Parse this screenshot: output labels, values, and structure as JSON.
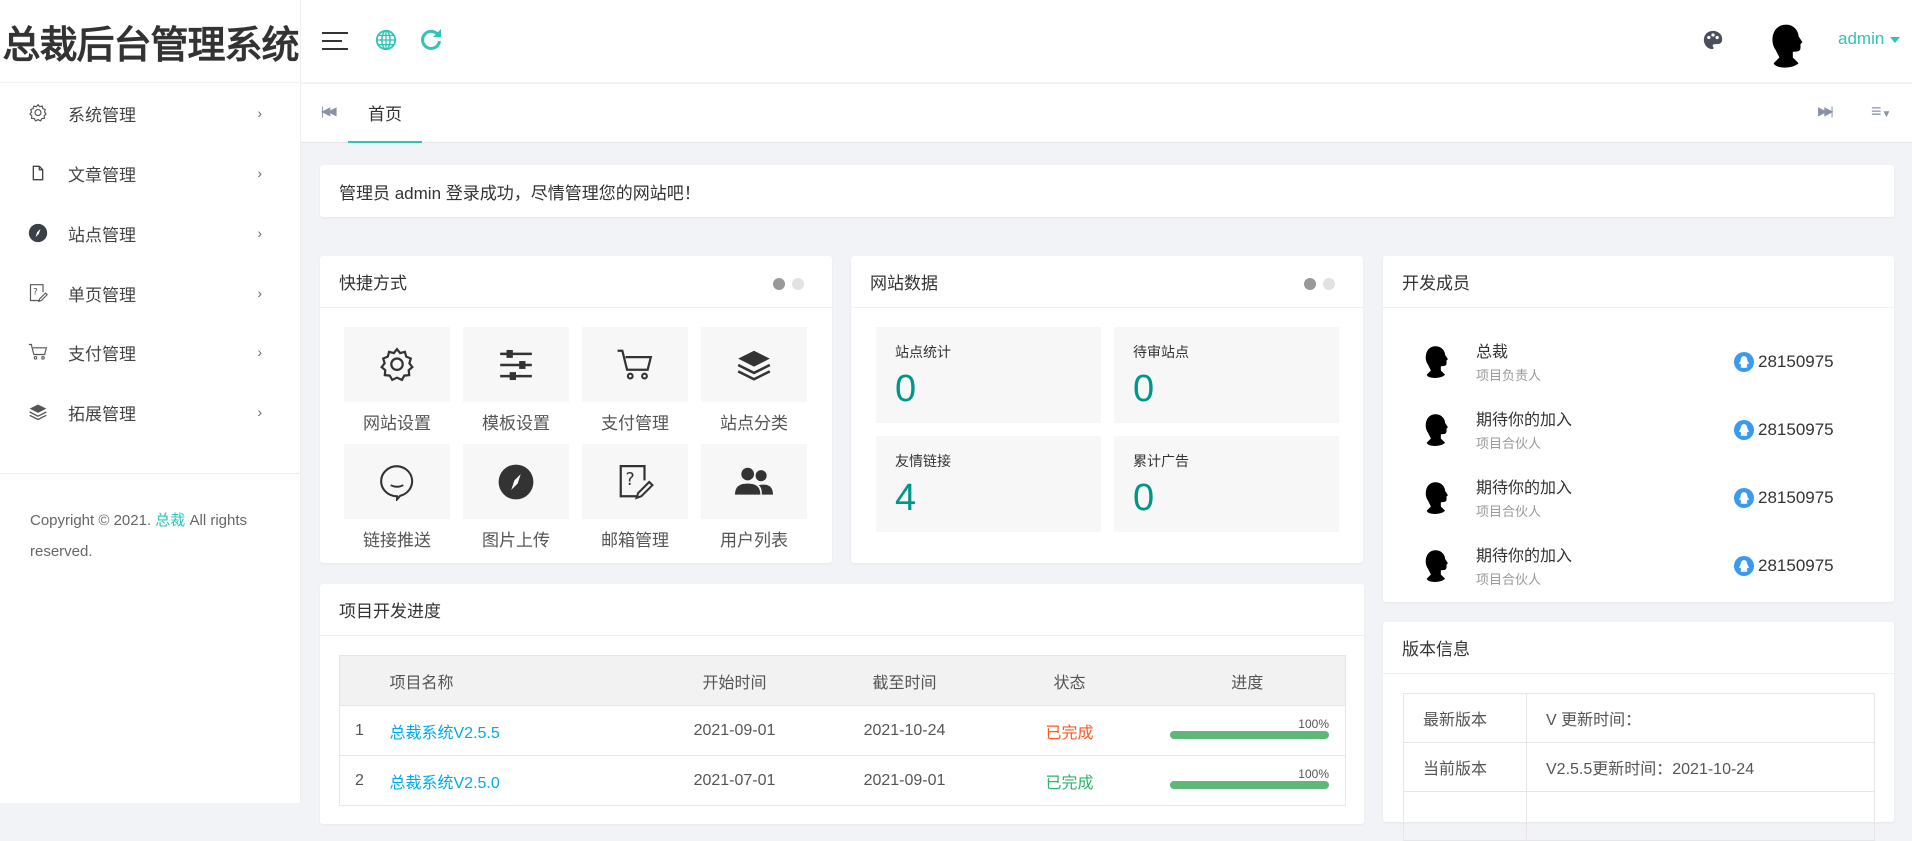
{
  "app": {
    "logo_text": "总裁后台管理系统"
  },
  "header": {
    "user_name": "admin",
    "icons": [
      "menu-icon",
      "globe-icon",
      "refresh-icon",
      "palette-icon"
    ]
  },
  "tabs": {
    "items": [
      {
        "label": "首页",
        "active": true
      }
    ]
  },
  "sidebar": {
    "items": [
      {
        "label": "系统管理",
        "icon": "gear-icon"
      },
      {
        "label": "文章管理",
        "icon": "file-icon"
      },
      {
        "label": "站点管理",
        "icon": "compass-icon"
      },
      {
        "label": "单页管理",
        "icon": "help-edit-icon"
      },
      {
        "label": "支付管理",
        "icon": "cart-icon"
      },
      {
        "label": "拓展管理",
        "icon": "layers-icon"
      }
    ],
    "copyright_pre": "Copyright © 2021. ",
    "copyright_link": "总裁",
    "copyright_post": " All rights reserved."
  },
  "welcome": "管理员 admin 登录成功，尽情管理您的网站吧！",
  "quick": {
    "title": "快捷方式",
    "items": [
      {
        "label": "网站设置",
        "icon": "gear-icon"
      },
      {
        "label": "模板设置",
        "icon": "sliders-icon"
      },
      {
        "label": "支付管理",
        "icon": "cart-icon"
      },
      {
        "label": "站点分类",
        "icon": "layers-icon"
      },
      {
        "label": "链接推送",
        "icon": "chat-icon"
      },
      {
        "label": "图片上传",
        "icon": "compass-icon"
      },
      {
        "label": "邮箱管理",
        "icon": "help-edit-icon"
      },
      {
        "label": "用户列表",
        "icon": "users-icon"
      }
    ]
  },
  "site_data": {
    "title": "网站数据",
    "items": [
      {
        "label": "站点统计",
        "value": "0"
      },
      {
        "label": "待审站点",
        "value": "0"
      },
      {
        "label": "友情链接",
        "value": "4"
      },
      {
        "label": "累计广告",
        "value": "0"
      }
    ]
  },
  "members": {
    "title": "开发成员",
    "items": [
      {
        "name": "总裁",
        "role": "项目负责人",
        "qq": "28150975"
      },
      {
        "name": "期待你的加入",
        "role": "项目合伙人",
        "qq": "28150975"
      },
      {
        "name": "期待你的加入",
        "role": "项目合伙人",
        "qq": "28150975"
      },
      {
        "name": "期待你的加入",
        "role": "项目合伙人",
        "qq": "28150975"
      }
    ]
  },
  "progress": {
    "title": "项目开发进度",
    "headers": [
      "",
      "项目名称",
      "开始时间",
      "截至时间",
      "状态",
      "进度"
    ],
    "rows": [
      {
        "no": "1",
        "name": "总裁系统V2.5.5",
        "start": "2021-09-01",
        "end": "2021-10-24",
        "status": "已完成",
        "status_color": "#ff5722",
        "percent": 100,
        "percent_label": "100%"
      },
      {
        "no": "2",
        "name": "总裁系统V2.5.0",
        "start": "2021-07-01",
        "end": "2021-09-01",
        "status": "已完成",
        "status_color": "#2fb36b",
        "percent": 100,
        "percent_label": "100%"
      }
    ]
  },
  "version": {
    "title": "版本信息",
    "rows": [
      {
        "label": "最新版本",
        "value": "V 更新时间："
      },
      {
        "label": "当前版本",
        "value": "V2.5.5更新时间：2021-10-24"
      },
      {
        "label": "",
        "value": ""
      }
    ]
  },
  "colors": {
    "accent": "#2ec4b6",
    "value": "#009688",
    "link": "#01aaed",
    "bar": "#5fb878"
  }
}
